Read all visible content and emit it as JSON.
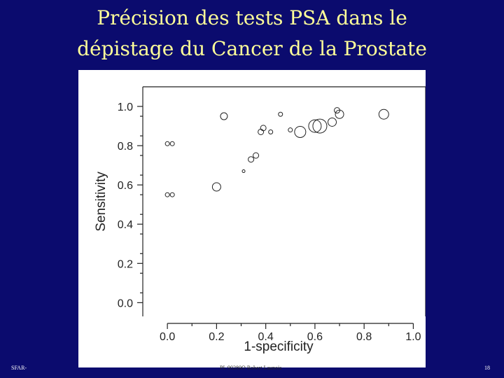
{
  "slide": {
    "title_line1": "Précision des tests PSA dans le",
    "title_line2": "dépistage du  Cancer de la Prostate"
  },
  "footer": {
    "left": "SFAR-",
    "center": "PL 90280O Robert Launois",
    "right": "18"
  },
  "colors": {
    "background": "#0b0b6e",
    "title": "#ffff99",
    "panel": "#ffffff",
    "ink": "#222222"
  },
  "chart_data": {
    "type": "scatter",
    "title": "",
    "xlabel": "1-specificity",
    "ylabel": "Sensitivity",
    "xlim": [
      -0.1,
      1.05
    ],
    "ylim": [
      -0.07,
      1.1
    ],
    "xticks": [
      "0.0",
      "0.2",
      "0.4",
      "0.6",
      "0.8",
      "1.0"
    ],
    "yticks": [
      "0.0",
      "0.2",
      "0.4",
      "0.6",
      "0.8",
      "1.0"
    ],
    "grid": false,
    "marker": "open-circle",
    "points": [
      {
        "x": 0.0,
        "y": 0.81,
        "size": 3
      },
      {
        "x": 0.02,
        "y": 0.81,
        "size": 3
      },
      {
        "x": 0.0,
        "y": 0.55,
        "size": 3
      },
      {
        "x": 0.02,
        "y": 0.55,
        "size": 3
      },
      {
        "x": 0.2,
        "y": 0.59,
        "size": 6
      },
      {
        "x": 0.23,
        "y": 0.95,
        "size": 5
      },
      {
        "x": 0.31,
        "y": 0.67,
        "size": 2
      },
      {
        "x": 0.34,
        "y": 0.73,
        "size": 4
      },
      {
        "x": 0.36,
        "y": 0.75,
        "size": 4
      },
      {
        "x": 0.38,
        "y": 0.87,
        "size": 4
      },
      {
        "x": 0.39,
        "y": 0.89,
        "size": 4
      },
      {
        "x": 0.42,
        "y": 0.87,
        "size": 3
      },
      {
        "x": 0.46,
        "y": 0.96,
        "size": 3
      },
      {
        "x": 0.5,
        "y": 0.88,
        "size": 3
      },
      {
        "x": 0.54,
        "y": 0.87,
        "size": 8
      },
      {
        "x": 0.6,
        "y": 0.9,
        "size": 9
      },
      {
        "x": 0.62,
        "y": 0.9,
        "size": 10
      },
      {
        "x": 0.67,
        "y": 0.92,
        "size": 6
      },
      {
        "x": 0.69,
        "y": 0.98,
        "size": 4
      },
      {
        "x": 0.7,
        "y": 0.96,
        "size": 6
      },
      {
        "x": 0.88,
        "y": 0.96,
        "size": 7
      }
    ]
  }
}
